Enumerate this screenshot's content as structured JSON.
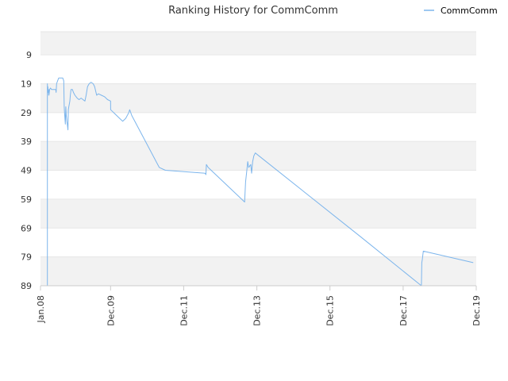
{
  "chart_data": {
    "type": "line",
    "title": "Ranking History for CommComm",
    "legend": {
      "position": "top-right",
      "entries": [
        {
          "name": "CommComm",
          "color": "#7cb5ec"
        }
      ]
    },
    "colors": {
      "series": "#7cb5ec",
      "band_shaded": "#f2f2f2",
      "band_plain": "#ffffff",
      "gridline": "#e6e6e6",
      "axis": "#cccccc"
    },
    "grid": true,
    "yaxis": {
      "reversed": true,
      "range": [
        1,
        89
      ],
      "ticks": [
        "9",
        "19",
        "29",
        "39",
        "49",
        "59",
        "69",
        "79",
        "89"
      ],
      "tick_values": [
        9,
        19,
        29,
        39,
        49,
        59,
        69,
        79,
        89
      ]
    },
    "xaxis": {
      "range": [
        "2008-01-01",
        "2019-12-01"
      ],
      "ticks": [
        "Jan.08",
        "Dec.09",
        "Dec.11",
        "Dec.13",
        "Dec.15",
        "Dec.17",
        "Dec.19"
      ],
      "tick_dates": [
        "2008-01-01",
        "2009-12-01",
        "2011-12-01",
        "2013-12-01",
        "2015-12-01",
        "2017-12-01",
        "2019-12-01"
      ]
    },
    "series": [
      {
        "name": "CommComm",
        "points": [
          [
            "2008-03-10",
            89
          ],
          [
            "2008-03-10",
            19
          ],
          [
            "2008-03-12",
            23
          ],
          [
            "2008-03-15",
            20
          ],
          [
            "2008-03-18",
            22
          ],
          [
            "2008-03-22",
            21
          ],
          [
            "2008-03-26",
            23
          ],
          [
            "2008-04-01",
            21
          ],
          [
            "2008-04-10",
            20.5
          ],
          [
            "2008-04-20",
            21
          ],
          [
            "2008-05-01",
            21
          ],
          [
            "2008-05-15",
            21
          ],
          [
            "2008-06-01",
            21
          ],
          [
            "2008-06-05",
            22
          ],
          [
            "2008-06-10",
            19
          ],
          [
            "2008-06-20",
            18
          ],
          [
            "2008-07-01",
            17
          ],
          [
            "2008-07-20",
            17
          ],
          [
            "2008-08-10",
            17
          ],
          [
            "2008-08-20",
            18
          ],
          [
            "2008-08-25",
            27
          ],
          [
            "2008-08-28",
            29
          ],
          [
            "2008-09-01",
            31
          ],
          [
            "2008-09-05",
            33
          ],
          [
            "2008-09-10",
            27
          ],
          [
            "2008-09-15",
            30
          ],
          [
            "2008-09-20",
            32
          ],
          [
            "2008-09-25",
            33
          ],
          [
            "2008-10-01",
            35
          ],
          [
            "2008-10-05",
            28
          ],
          [
            "2008-10-10",
            27
          ],
          [
            "2008-10-20",
            25
          ],
          [
            "2008-10-25",
            23
          ],
          [
            "2008-11-01",
            21
          ],
          [
            "2008-11-15",
            21
          ],
          [
            "2008-11-25",
            22
          ],
          [
            "2008-12-10",
            23
          ],
          [
            "2009-01-01",
            24
          ],
          [
            "2009-01-20",
            24.5
          ],
          [
            "2009-02-10",
            24
          ],
          [
            "2009-03-01",
            24.5
          ],
          [
            "2009-03-20",
            25
          ],
          [
            "2009-04-01",
            23
          ],
          [
            "2009-04-15",
            20
          ],
          [
            "2009-05-01",
            19
          ],
          [
            "2009-05-20",
            18.5
          ],
          [
            "2009-06-10",
            19
          ],
          [
            "2009-06-25",
            20
          ],
          [
            "2009-07-15",
            23
          ],
          [
            "2009-08-01",
            22.5
          ],
          [
            "2009-09-01",
            23
          ],
          [
            "2009-10-01",
            23.5
          ],
          [
            "2009-11-01",
            24.5
          ],
          [
            "2009-12-01",
            25
          ],
          [
            "2009-12-02",
            28
          ],
          [
            "2010-01-15",
            29.5
          ],
          [
            "2010-03-01",
            31
          ],
          [
            "2010-04-01",
            32
          ],
          [
            "2010-05-01",
            31
          ],
          [
            "2010-06-01",
            29
          ],
          [
            "2010-06-10",
            28
          ],
          [
            "2010-07-01",
            30
          ],
          [
            "2011-04-01",
            48
          ],
          [
            "2011-06-01",
            49
          ],
          [
            "2012-07-01",
            50
          ],
          [
            "2012-07-10",
            50.5
          ],
          [
            "2012-07-15",
            47
          ],
          [
            "2012-08-01",
            48
          ],
          [
            "2013-08-01",
            60
          ],
          [
            "2013-08-05",
            57
          ],
          [
            "2013-08-10",
            53
          ],
          [
            "2013-08-20",
            50
          ],
          [
            "2013-09-01",
            46
          ],
          [
            "2013-09-10",
            48
          ],
          [
            "2013-10-01",
            47
          ],
          [
            "2013-10-10",
            50
          ],
          [
            "2013-10-20",
            46
          ],
          [
            "2013-11-01",
            44
          ],
          [
            "2013-11-15",
            43
          ],
          [
            "2016-10-01",
            72
          ],
          [
            "2018-06-01",
            89
          ],
          [
            "2018-06-05",
            81
          ],
          [
            "2018-06-10",
            80
          ],
          [
            "2018-06-20",
            77
          ],
          [
            "2019-11-01",
            81
          ]
        ]
      }
    ]
  }
}
